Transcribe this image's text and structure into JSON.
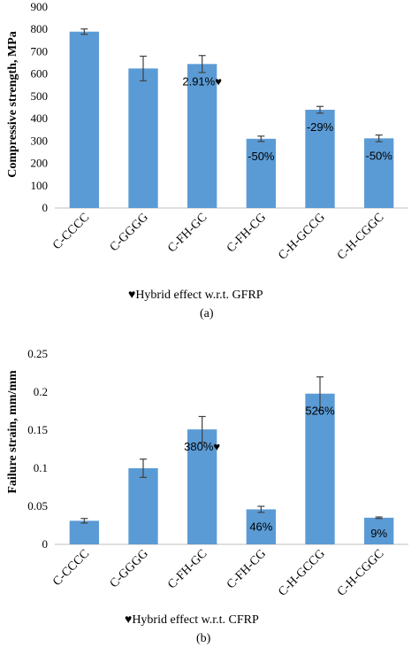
{
  "chart_data": [
    {
      "type": "bar",
      "ylabel": "Compressive strength, MPa",
      "categories": [
        "C-CCCC",
        "C-GGGG",
        "C-FH-GC",
        "C-FH-CG",
        "C-H-GCCG",
        "C-H-CGGC"
      ],
      "values": [
        790,
        625,
        645,
        310,
        440,
        312
      ],
      "error": [
        12,
        55,
        38,
        12,
        15,
        15
      ],
      "data_labels": [
        "",
        "",
        "2.91%♥",
        "-50%",
        "-29%",
        "-50%"
      ],
      "ylim": [
        0,
        900
      ],
      "yticks": [
        "0",
        "100",
        "200",
        "300",
        "400",
        "500",
        "600",
        "700",
        "800",
        "900"
      ],
      "bar_color": "#5B9BD5",
      "footnote": "♥Hybrid effect w.r.t. GFRP",
      "panel_label": "(a)"
    },
    {
      "type": "bar",
      "ylabel": "Failure strain, mm/mm",
      "categories": [
        "C-CCCC",
        "C-GGGG",
        "C-FH-GC",
        "C-FH-CG",
        "C-H-GCCG",
        "C-H-CGGC"
      ],
      "values": [
        0.031,
        0.1,
        0.151,
        0.046,
        0.198,
        0.035
      ],
      "error": [
        0.003,
        0.012,
        0.017,
        0.004,
        0.022,
        0.001
      ],
      "data_labels": [
        "",
        "",
        "380%♥",
        "46%",
        "526%",
        "9%"
      ],
      "ylim": [
        0,
        0.25
      ],
      "yticks": [
        "0",
        "0.05",
        "0.1",
        "0.15",
        "0.2",
        "0.25"
      ],
      "bar_color": "#5B9BD5",
      "footnote": "♥Hybrid effect w.r.t. CFRP",
      "panel_label": "(b)"
    }
  ]
}
